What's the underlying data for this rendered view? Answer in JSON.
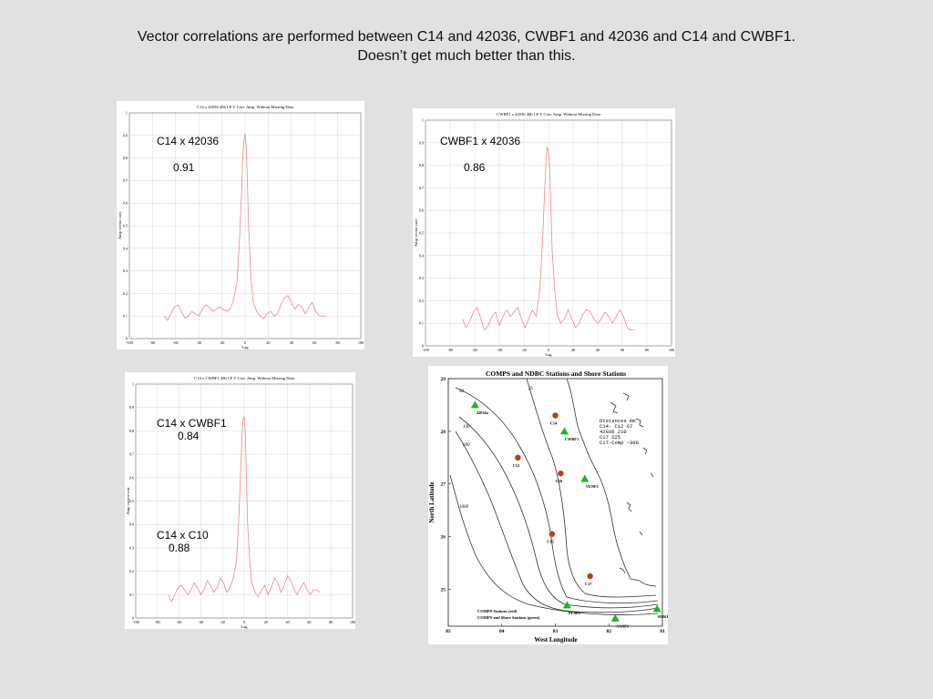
{
  "slide": {
    "title_line1": "Vector correlations are performed between C14 and 42036, CWBF1 and  42036 and C14 and CWBF1.",
    "title_line2": "Doesn’t get much better than this."
  },
  "colors": {
    "curve": "#e88a8a",
    "grid": "#d8d8d8",
    "station_red": "#c0391b",
    "station_green": "#19b81c"
  },
  "chart_data": [
    {
      "type": "line",
      "title": "C14 x 42036 40h LF V Corr. Amp. Without Missing Data",
      "xlabel": "Lag",
      "ylabel": "Amp vector corr",
      "xlim": [
        -100,
        100
      ],
      "ylim": [
        0,
        1
      ],
      "xticks": [
        -100,
        -80,
        -60,
        -40,
        -20,
        0,
        20,
        40,
        60,
        80,
        100
      ],
      "yticks": [
        0,
        0.1,
        0.2,
        0.3,
        0.4,
        0.5,
        0.6,
        0.7,
        0.8,
        0.9,
        1
      ],
      "grid": true,
      "annotations": [
        {
          "label": "C14 x 42036",
          "value": "0.91"
        }
      ],
      "series": [
        {
          "x": [
            -70,
            -67,
            -64,
            -61,
            -58,
            -55,
            -52,
            -49,
            -46,
            -43,
            -40,
            -37,
            -34,
            -31,
            -28,
            -25,
            -22,
            -19,
            -16,
            -13,
            -10,
            -7,
            -5,
            -3,
            -2,
            -1,
            0,
            1,
            2,
            3,
            5,
            7,
            10,
            13,
            16,
            19,
            22,
            25,
            28,
            31,
            34,
            37,
            40,
            43,
            46,
            49,
            52,
            55,
            58,
            61,
            64,
            67,
            70
          ],
          "y": [
            0.1,
            0.08,
            0.11,
            0.14,
            0.15,
            0.12,
            0.09,
            0.1,
            0.12,
            0.11,
            0.1,
            0.13,
            0.15,
            0.14,
            0.12,
            0.13,
            0.14,
            0.13,
            0.12,
            0.13,
            0.17,
            0.25,
            0.42,
            0.65,
            0.8,
            0.88,
            0.91,
            0.85,
            0.7,
            0.5,
            0.28,
            0.16,
            0.12,
            0.1,
            0.09,
            0.11,
            0.12,
            0.1,
            0.11,
            0.15,
            0.18,
            0.19,
            0.16,
            0.13,
            0.15,
            0.14,
            0.11,
            0.14,
            0.16,
            0.12,
            0.1,
            0.1,
            0.1
          ]
        }
      ]
    },
    {
      "type": "line",
      "title": "CWBF1 x 42036 40h LF V Corr. Amp. Without Missing Data",
      "xlabel": "Lag",
      "ylabel": "Amp vector corr",
      "xlim": [
        -100,
        100
      ],
      "ylim": [
        0,
        1
      ],
      "xticks": [
        -100,
        -80,
        -60,
        -40,
        -20,
        0,
        20,
        40,
        60,
        80,
        100
      ],
      "yticks": [
        0,
        0.1,
        0.2,
        0.3,
        0.4,
        0.5,
        0.6,
        0.7,
        0.8,
        0.9,
        1
      ],
      "grid": true,
      "annotations": [
        {
          "label": "CWBF1 x 42036",
          "value": "0.86"
        }
      ],
      "series": [
        {
          "x": [
            -70,
            -67,
            -64,
            -61,
            -58,
            -55,
            -52,
            -49,
            -46,
            -43,
            -40,
            -37,
            -34,
            -31,
            -28,
            -25,
            -22,
            -19,
            -16,
            -13,
            -10,
            -7,
            -5,
            -3,
            -2,
            -1,
            0,
            1,
            2,
            3,
            5,
            7,
            10,
            13,
            16,
            19,
            22,
            25,
            28,
            31,
            34,
            37,
            40,
            43,
            46,
            49,
            52,
            55,
            58,
            61,
            64,
            67,
            70
          ],
          "y": [
            0.12,
            0.08,
            0.11,
            0.15,
            0.17,
            0.12,
            0.07,
            0.09,
            0.13,
            0.15,
            0.09,
            0.13,
            0.16,
            0.13,
            0.15,
            0.17,
            0.12,
            0.08,
            0.12,
            0.16,
            0.13,
            0.25,
            0.45,
            0.7,
            0.82,
            0.88,
            0.86,
            0.78,
            0.6,
            0.42,
            0.25,
            0.14,
            0.1,
            0.12,
            0.16,
            0.12,
            0.08,
            0.1,
            0.14,
            0.16,
            0.15,
            0.12,
            0.1,
            0.12,
            0.15,
            0.13,
            0.1,
            0.13,
            0.16,
            0.13,
            0.08,
            0.07,
            0.07
          ]
        }
      ]
    },
    {
      "type": "line",
      "title": "C14 x CWBF1 40h LF V Corr. Amp. Without Missing Data",
      "xlabel": "Lag",
      "ylabel": "Amp vector corr",
      "xlim": [
        -100,
        100
      ],
      "ylim": [
        0,
        1
      ],
      "xticks": [
        -100,
        -80,
        -60,
        -40,
        -20,
        0,
        20,
        40,
        60,
        80,
        100
      ],
      "yticks": [
        0,
        0.1,
        0.2,
        0.3,
        0.4,
        0.5,
        0.6,
        0.7,
        0.8,
        0.9,
        1
      ],
      "grid": true,
      "annotations": [
        {
          "label": "C14 x CWBF1",
          "value": "0.84"
        },
        {
          "label": "C14 x C10",
          "value": "0.88"
        }
      ],
      "series": [
        {
          "x": [
            -70,
            -67,
            -64,
            -61,
            -58,
            -55,
            -52,
            -49,
            -46,
            -43,
            -40,
            -37,
            -34,
            -31,
            -28,
            -25,
            -22,
            -19,
            -16,
            -13,
            -10,
            -7,
            -5,
            -3,
            -2,
            -1,
            0,
            1,
            2,
            3,
            5,
            7,
            10,
            13,
            16,
            19,
            22,
            25,
            28,
            31,
            34,
            37,
            40,
            43,
            46,
            49,
            52,
            55,
            58,
            61,
            64,
            67,
            70
          ],
          "y": [
            0.1,
            0.07,
            0.1,
            0.13,
            0.14,
            0.12,
            0.1,
            0.12,
            0.15,
            0.13,
            0.1,
            0.12,
            0.16,
            0.14,
            0.11,
            0.13,
            0.17,
            0.15,
            0.11,
            0.13,
            0.17,
            0.25,
            0.42,
            0.65,
            0.78,
            0.85,
            0.86,
            0.8,
            0.62,
            0.42,
            0.25,
            0.15,
            0.11,
            0.09,
            0.12,
            0.14,
            0.1,
            0.13,
            0.17,
            0.15,
            0.11,
            0.14,
            0.18,
            0.16,
            0.12,
            0.1,
            0.13,
            0.15,
            0.12,
            0.1,
            0.12,
            0.12,
            0.11
          ]
        }
      ]
    }
  ],
  "map": {
    "title": "COMPS and NDBC Stations and Shore Stations",
    "xlabel": "West Longitude",
    "ylabel": "North Latitude",
    "lon_range": [
      85,
      81
    ],
    "lat_range": [
      24.3,
      29
    ],
    "xticks": [
      85,
      84,
      83,
      82,
      81
    ],
    "yticks": [
      25,
      26,
      27,
      28,
      29
    ],
    "legend_red": "COMPS Stations (red)",
    "legend_green": "COMPS and Shore Stations (green)",
    "distances": {
      "header": "Distances  Km",
      "lines": [
        "C14- C12   67",
        "42036 210",
        "C17   225",
        "C17-Comp ~300"
      ]
    },
    "depth_labels": [
      "50",
      "25",
      "100",
      "200",
      "1000"
    ],
    "red_stations": [
      {
        "name": "C14",
        "lon": 83.0,
        "lat": 28.3
      },
      {
        "name": "C12",
        "lon": 83.7,
        "lat": 27.5
      },
      {
        "name": "C10",
        "lon": 82.9,
        "lat": 27.2
      },
      {
        "name": "C13",
        "lon": 83.06,
        "lat": 26.05
      },
      {
        "name": "C17",
        "lon": 82.35,
        "lat": 25.25
      }
    ],
    "green_stations": [
      {
        "name": "42036a",
        "lon": 84.5,
        "lat": 28.5
      },
      {
        "name": "CWBF1",
        "lon": 82.83,
        "lat": 28.0
      },
      {
        "name": "VENF1",
        "lon": 82.45,
        "lat": 27.1
      },
      {
        "name": "PLSF1",
        "lon": 82.78,
        "lat": 24.7
      },
      {
        "name": "SANF1",
        "lon": 81.88,
        "lat": 24.45
      },
      {
        "name": "SMKF1",
        "lon": 81.1,
        "lat": 24.63
      }
    ]
  }
}
